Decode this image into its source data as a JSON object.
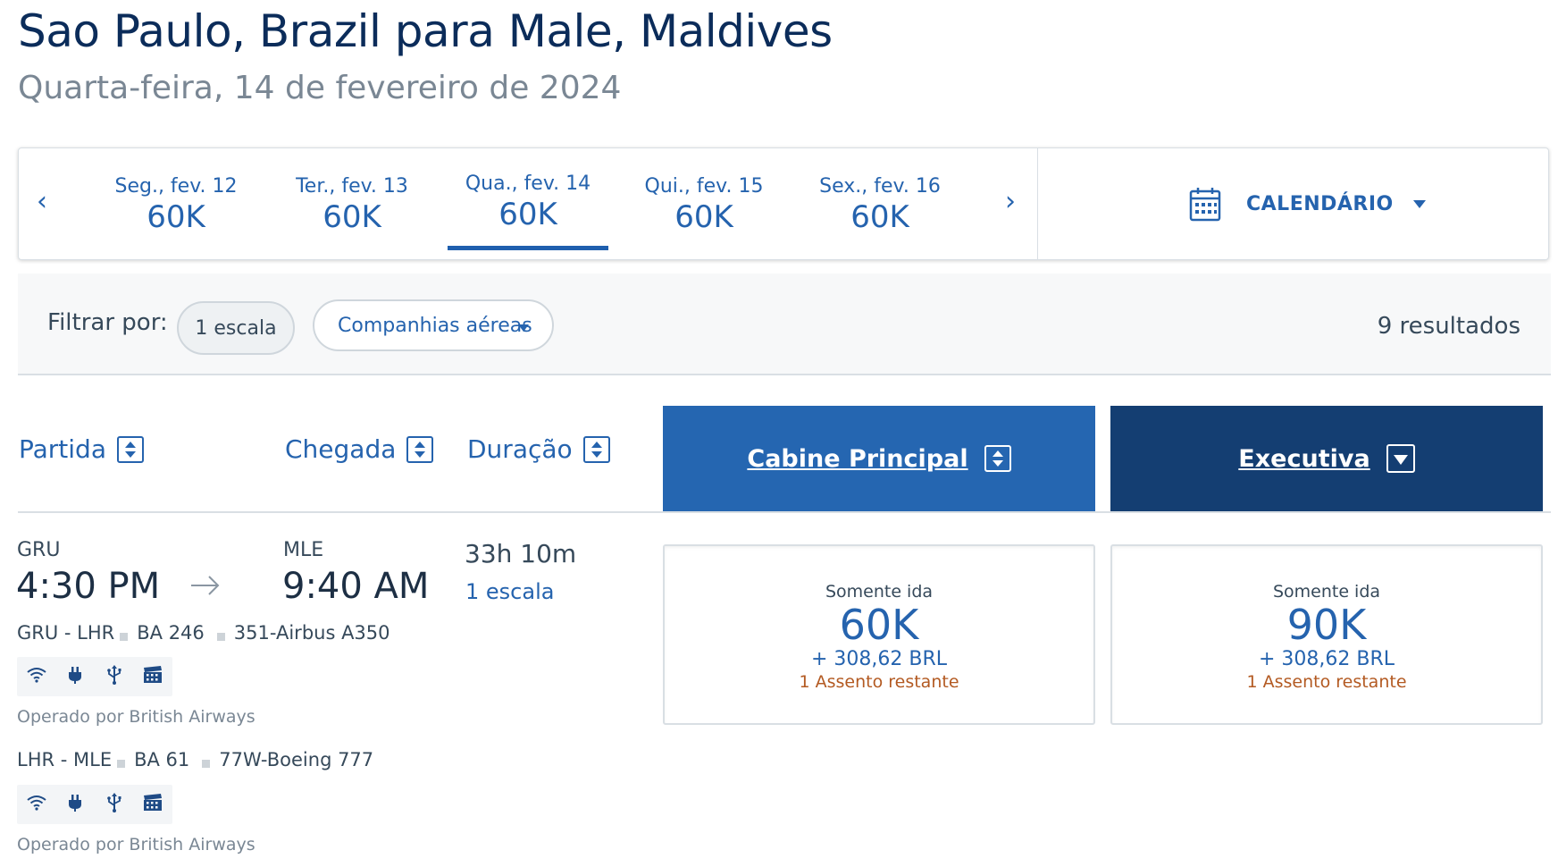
{
  "header": {
    "title": "Sao Paulo, Brazil para Male, Maldives",
    "date": "Quarta-feira, 14 de fevereiro de 2024"
  },
  "date_strip": {
    "prev": "‹",
    "next": "›",
    "days": [
      {
        "label": "Seg., fev. 12",
        "price": "60K"
      },
      {
        "label": "Ter., fev. 13",
        "price": "60K"
      },
      {
        "label": "Qua., fev. 14",
        "price": "60K",
        "selected": true
      },
      {
        "label": "Qui., fev. 15",
        "price": "60K"
      },
      {
        "label": "Sex., fev. 16",
        "price": "60K"
      }
    ],
    "calendar_label": "CALENDÁRIO"
  },
  "filter": {
    "label": "Filtrar por:",
    "stops_chip": "1 escala",
    "airlines_dropdown": "Companhias aéreas",
    "results": "9 resultados"
  },
  "columns": {
    "departure": "Partida",
    "arrival": "Chegada",
    "duration": "Duração",
    "main_cabin": "Cabine Principal",
    "business": "Executiva"
  },
  "flight": {
    "origin": "GRU",
    "depart_time": "4:30 PM",
    "destination": "MLE",
    "arrive_time": "9:40 AM",
    "duration": "33h 10m",
    "stops": "1 escala",
    "segments": [
      {
        "route": "GRU - LHR",
        "flight": "BA 246",
        "aircraft": "351-Airbus A350",
        "operated_by": "Operado por British Airways"
      },
      {
        "route": "LHR - MLE",
        "flight": "BA 61",
        "aircraft": "77W-Boeing 777",
        "operated_by": "Operado por British Airways"
      }
    ],
    "amenity_icons": [
      "wifi-icon",
      "power-outlet-icon",
      "usb-icon",
      "entertainment-icon"
    ],
    "fares": [
      {
        "type": "Somente ida",
        "price": "60K",
        "taxes": "+ 308,62 BRL",
        "seats": "1 Assento restante"
      },
      {
        "type": "Somente ida",
        "price": "90K",
        "taxes": "+ 308,62 BRL",
        "seats": "1 Assento restante"
      }
    ]
  },
  "colors": {
    "link_blue": "#2563ae",
    "main_cabin_bg": "#2566b1",
    "business_bg": "#143e72",
    "seats_warning": "#b35a22",
    "title_navy": "#0b2c5a"
  }
}
